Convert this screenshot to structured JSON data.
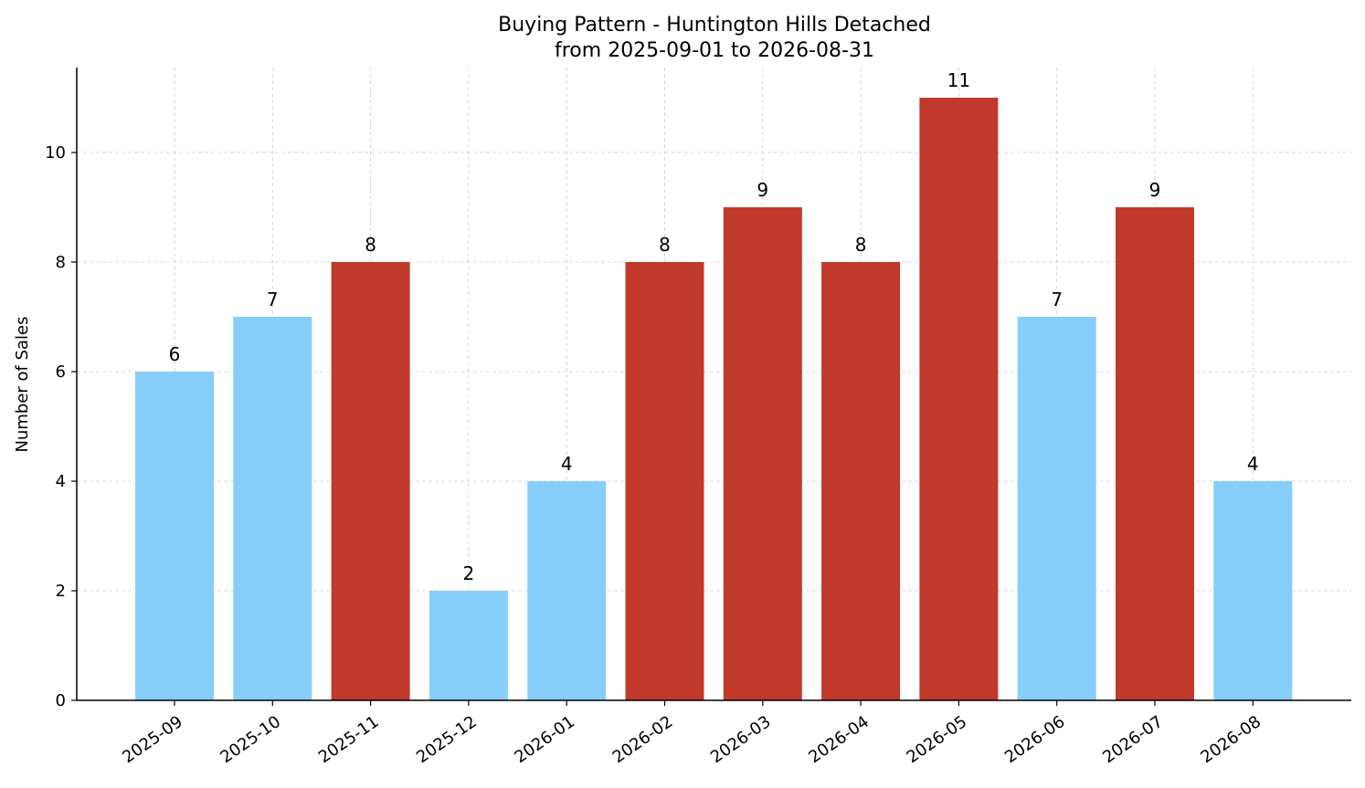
{
  "chart_data": {
    "type": "bar",
    "title": "Buying Pattern - Huntington Hills Detached",
    "subtitle": "from 2025-09-01 to 2026-08-31",
    "xlabel": "",
    "ylabel": "Number of Sales",
    "categories": [
      "2025-09",
      "2025-10",
      "2025-11",
      "2025-12",
      "2026-01",
      "2026-02",
      "2026-03",
      "2026-04",
      "2026-05",
      "2026-06",
      "2026-07",
      "2026-08"
    ],
    "values": [
      6,
      7,
      8,
      2,
      4,
      8,
      9,
      8,
      11,
      7,
      9,
      4
    ],
    "bar_colors": [
      "#87CEFA",
      "#87CEFA",
      "#C0392B",
      "#87CEFA",
      "#87CEFA",
      "#C0392B",
      "#C0392B",
      "#C0392B",
      "#C0392B",
      "#87CEFA",
      "#C0392B",
      "#87CEFA"
    ],
    "ylim": [
      0,
      11.55
    ],
    "yticks": [
      0,
      2,
      4,
      6,
      8,
      10
    ],
    "grid": true,
    "legend": "none"
  }
}
